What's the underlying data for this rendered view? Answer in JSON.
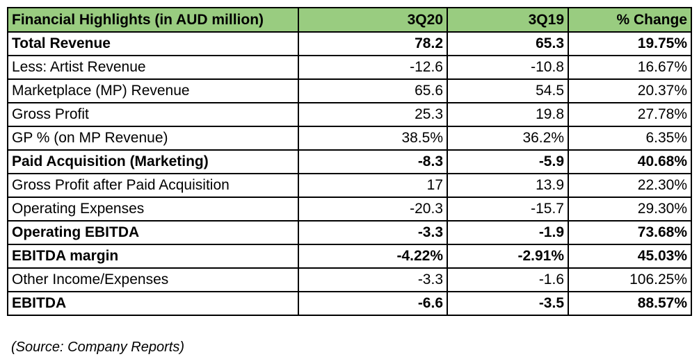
{
  "header": {
    "title": "Financial Highlights (in AUD million)",
    "col1": "3Q20",
    "col2": "3Q19",
    "col3": "% Change"
  },
  "rows": [
    {
      "label": "Total Revenue",
      "q20": "78.2",
      "q19": "65.3",
      "change": "19.75%",
      "bold": true
    },
    {
      "label": "Less: Artist Revenue",
      "q20": "-12.6",
      "q19": "-10.8",
      "change": "16.67%",
      "bold": false
    },
    {
      "label": "Marketplace (MP) Revenue",
      "q20": "65.6",
      "q19": "54.5",
      "change": "20.37%",
      "bold": false
    },
    {
      "label": "Gross Profit",
      "q20": "25.3",
      "q19": "19.8",
      "change": "27.78%",
      "bold": false
    },
    {
      "label": "GP % (on MP Revenue)",
      "q20": "38.5%",
      "q19": "36.2%",
      "change": "6.35%",
      "bold": false
    },
    {
      "label": "Paid Acquisition (Marketing)",
      "q20": "-8.3",
      "q19": "-5.9",
      "change": "40.68%",
      "bold": true
    },
    {
      "label": "Gross Profit after Paid Acquisition",
      "q20": "17",
      "q19": "13.9",
      "change": "22.30%",
      "bold": false
    },
    {
      "label": "Operating Expenses",
      "q20": "-20.3",
      "q19": "-15.7",
      "change": "29.30%",
      "bold": false
    },
    {
      "label": "Operating EBITDA",
      "q20": "-3.3",
      "q19": "-1.9",
      "change": "73.68%",
      "bold": true
    },
    {
      "label": "EBITDA margin",
      "q20": "-4.22%",
      "q19": "-2.91%",
      "change": "45.03%",
      "bold": true
    },
    {
      "label": "Other Income/Expenses",
      "q20": "-3.3",
      "q19": "-1.6",
      "change": "106.25%",
      "bold": false
    },
    {
      "label": "EBITDA",
      "q20": "-6.6",
      "q19": "-3.5",
      "change": "88.57%",
      "bold": true
    }
  ],
  "source": "(Source: Company Reports)",
  "colors": {
    "header_background": "#99cc80",
    "border": "#000000"
  }
}
